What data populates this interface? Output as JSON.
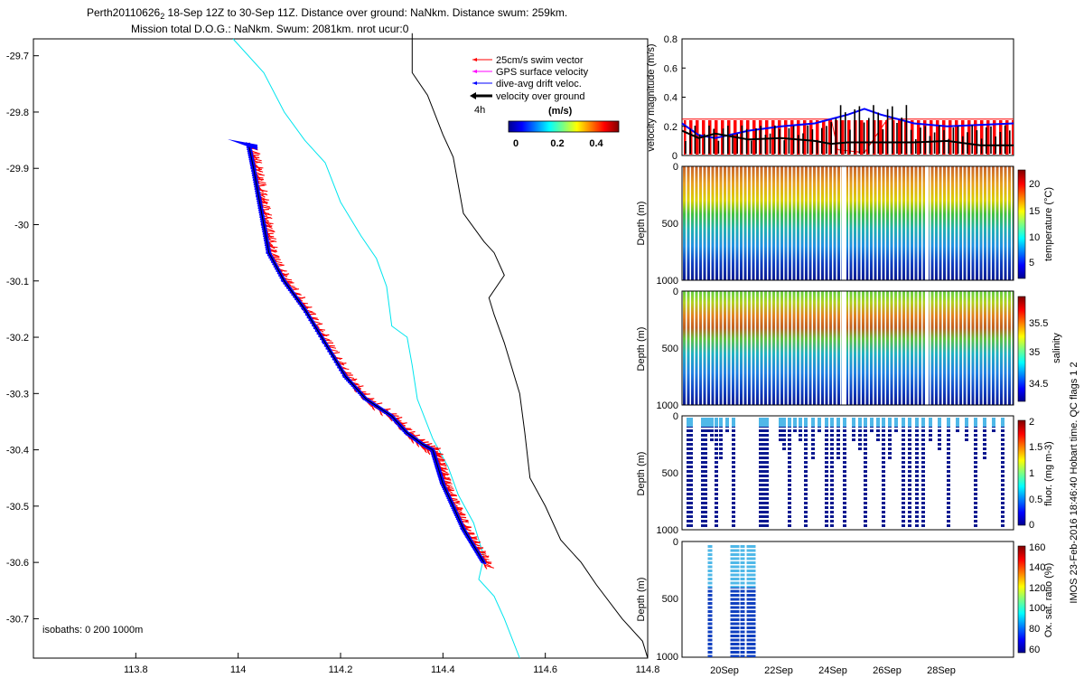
{
  "title": {
    "line1_prefix": "Perth20110626",
    "line1_sub": "2",
    "line1_rest": " 18-Sep 12Z to 30-Sep 11Z. Distance over ground: NaNkm. Distance swum: 259km.",
    "line2": "Mission total D.O.G.: NaNkm. Swum: 2081km. nrot ucur:0"
  },
  "footer_label": "IMOS 23-Feb-2016 18:46:40 Hobart time. QC flags 1  2",
  "colors": {
    "swim": "#ff0000",
    "gps": "#ff00ff",
    "drift": "#0000ff",
    "ground": "#000000",
    "isobath200": "#00e5ee",
    "isobath1000": "#000000"
  },
  "chart_data": [
    {
      "type": "scatter",
      "panel": "track-map",
      "xlim": [
        113.6,
        114.8
      ],
      "ylim": [
        -30.77,
        -29.67
      ],
      "xticks": [
        "113.8",
        "114",
        "114.2",
        "114.4",
        "114.6",
        "114.8"
      ],
      "yticks": [
        "-29.7",
        "-29.8",
        "-29.9",
        "-30",
        "-30.1",
        "-30.2",
        "-30.3",
        "-30.4",
        "-30.5",
        "-30.6",
        "-30.7"
      ],
      "legend": [
        {
          "label": "25cm/s swim vector",
          "color": "#ff0000"
        },
        {
          "label": "GPS surface velocity",
          "color": "#ff00ff"
        },
        {
          "label": "dive-avg drift veloc.",
          "color": "#0000ff"
        },
        {
          "label": "velocity over ground",
          "color": "#000000"
        }
      ],
      "legend_scale_label": "4h",
      "colorbar": {
        "title": "(m/s)",
        "ticks": [
          "0",
          "0.2",
          "0.4"
        ]
      },
      "isobath_label": "isobaths: 0   200  1000m",
      "track": [
        [
          114.02,
          -29.855
        ],
        [
          114.03,
          -29.9
        ],
        [
          114.04,
          -29.95
        ],
        [
          114.05,
          -30.0
        ],
        [
          114.06,
          -30.05
        ],
        [
          114.09,
          -30.1
        ],
        [
          114.13,
          -30.15
        ],
        [
          114.17,
          -30.21
        ],
        [
          114.21,
          -30.27
        ],
        [
          114.25,
          -30.31
        ],
        [
          114.3,
          -30.34
        ],
        [
          114.33,
          -30.37
        ],
        [
          114.36,
          -30.39
        ],
        [
          114.38,
          -30.4
        ],
        [
          114.39,
          -30.43
        ],
        [
          114.4,
          -30.46
        ],
        [
          114.42,
          -30.5
        ],
        [
          114.44,
          -30.54
        ],
        [
          114.46,
          -30.57
        ],
        [
          114.48,
          -30.6
        ]
      ],
      "isobath_200": [
        [
          113.99,
          -29.67
        ],
        [
          114.05,
          -29.73
        ],
        [
          114.09,
          -29.8
        ],
        [
          114.13,
          -29.85
        ],
        [
          114.17,
          -29.89
        ],
        [
          114.2,
          -29.96
        ],
        [
          114.24,
          -30.02
        ],
        [
          114.27,
          -30.06
        ],
        [
          114.29,
          -30.11
        ],
        [
          114.3,
          -30.18
        ],
        [
          114.33,
          -30.2
        ],
        [
          114.34,
          -30.25
        ],
        [
          114.35,
          -30.31
        ],
        [
          114.38,
          -30.38
        ],
        [
          114.41,
          -30.43
        ],
        [
          114.43,
          -30.48
        ],
        [
          114.46,
          -30.53
        ],
        [
          114.48,
          -30.59
        ],
        [
          114.47,
          -30.63
        ],
        [
          114.5,
          -30.66
        ],
        [
          114.52,
          -30.7
        ],
        [
          114.55,
          -30.77
        ]
      ],
      "isobath_1000": [
        [
          114.34,
          -29.66
        ],
        [
          114.34,
          -29.73
        ],
        [
          114.37,
          -29.77
        ],
        [
          114.4,
          -29.84
        ],
        [
          114.42,
          -29.88
        ],
        [
          114.44,
          -29.98
        ],
        [
          114.48,
          -30.03
        ],
        [
          114.5,
          -30.05
        ],
        [
          114.52,
          -30.09
        ],
        [
          114.49,
          -30.13
        ],
        [
          114.5,
          -30.16
        ],
        [
          114.52,
          -30.21
        ],
        [
          114.55,
          -30.3
        ],
        [
          114.56,
          -30.37
        ],
        [
          114.57,
          -30.45
        ],
        [
          114.6,
          -30.5
        ],
        [
          114.63,
          -30.56
        ],
        [
          114.67,
          -30.6
        ],
        [
          114.7,
          -30.64
        ],
        [
          114.75,
          -30.7
        ],
        [
          114.79,
          -30.74
        ],
        [
          114.8,
          -30.77
        ]
      ]
    },
    {
      "type": "line",
      "panel": "velocity",
      "ylabel": "velocity magnitude (m/s)",
      "ylim": [
        0,
        0.8
      ],
      "yticks": [
        "0",
        "0.2",
        "0.4",
        "0.6",
        "0.8"
      ],
      "series": [
        {
          "name": "swim",
          "color": "#ff0000",
          "x": [
            0,
            0.2,
            0.45,
            0.47,
            0.55,
            0.62,
            0.85,
            1.0
          ],
          "values": [
            0.25,
            0.25,
            0.25,
            0.04,
            0.02,
            0.25,
            0.25,
            0.25
          ]
        },
        {
          "name": "drift",
          "color": "#0000ff",
          "x": [
            0,
            0.05,
            0.1,
            0.2,
            0.3,
            0.4,
            0.5,
            0.55,
            0.6,
            0.7,
            0.8,
            0.9,
            1.0
          ],
          "values": [
            0.22,
            0.14,
            0.12,
            0.17,
            0.2,
            0.22,
            0.28,
            0.32,
            0.28,
            0.22,
            0.2,
            0.21,
            0.22
          ]
        },
        {
          "name": "ground",
          "color": "#000000",
          "x": [
            0,
            0.05,
            0.1,
            0.15,
            0.2,
            0.3,
            0.4,
            0.45,
            0.5,
            0.6,
            0.7,
            0.8,
            0.9,
            1.0
          ],
          "values": [
            0.17,
            0.12,
            0.15,
            0.13,
            0.11,
            0.12,
            0.1,
            0.08,
            0.09,
            0.09,
            0.09,
            0.1,
            0.07,
            0.07
          ]
        }
      ]
    },
    {
      "type": "heatmap",
      "panel": "temperature",
      "ylabel": "Depth (m)",
      "clabel": "temperature (°C)",
      "yticks": [
        "0",
        "500",
        "1000"
      ],
      "cticks": [
        "5",
        "10",
        "15",
        "20"
      ]
    },
    {
      "type": "heatmap",
      "panel": "salinity",
      "ylabel": "Depth (m)",
      "clabel": "salinity",
      "yticks": [
        "0",
        "500",
        "1000"
      ],
      "cticks": [
        "34.5",
        "35",
        "35.5"
      ]
    },
    {
      "type": "heatmap",
      "panel": "fluorescence",
      "ylabel": "Depth (m)",
      "clabel": "fluor. (mg m-3)",
      "yticks": [
        "0",
        "500",
        "1000"
      ],
      "cticks": [
        "0",
        "0.5",
        "1",
        "1.5",
        "2"
      ]
    },
    {
      "type": "heatmap",
      "panel": "oxygen",
      "ylabel": "Depth (m)",
      "clabel": "Ox. sat. ratio (%)",
      "yticks": [
        "0",
        "500",
        "1000"
      ],
      "cticks": [
        "60",
        "80",
        "100",
        "120",
        "140",
        "160"
      ]
    },
    {
      "type": "axis",
      "panel": "time-axis",
      "xticks": [
        "20Sep",
        "22Sep",
        "24Sep",
        "26Sep",
        "28Sep"
      ]
    }
  ]
}
